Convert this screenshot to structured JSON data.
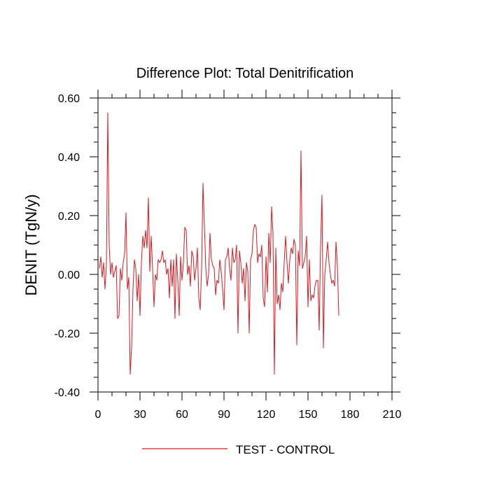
{
  "chart_data": {
    "type": "line",
    "title": "Difference Plot: Total Denitrification",
    "xlabel": "",
    "ylabel": "DENIT  (TgN/y)",
    "xlim": [
      0,
      210
    ],
    "ylim": [
      -0.4,
      0.6
    ],
    "xticks": [
      0,
      30,
      60,
      90,
      120,
      150,
      180,
      210
    ],
    "xtick_labels": [
      "0",
      "30",
      "60",
      "90",
      "120",
      "150",
      "180",
      "210"
    ],
    "yticks": [
      -0.4,
      -0.2,
      0.0,
      0.2,
      0.4,
      0.6
    ],
    "ytick_labels": [
      "-0.40",
      "-0.20",
      "0.00",
      "0.20",
      "0.40",
      "0.60"
    ],
    "grid": false,
    "legend_position": "bottom-center",
    "series": [
      {
        "name": "TEST - CONTROL",
        "color": "#e8141c",
        "x_start": 1,
        "x_step": 1,
        "values": [
          0.02,
          0.06,
          -0.01,
          0.04,
          -0.05,
          0.03,
          0.55,
          0.1,
          0.0,
          0.04,
          -0.01,
          0.01,
          0.03,
          -0.15,
          -0.14,
          0.02,
          -0.02,
          0.04,
          0.07,
          0.21,
          -0.05,
          -0.01,
          -0.34,
          -0.25,
          -0.05,
          0.05,
          0.02,
          -0.09,
          0.0,
          -0.14,
          0.04,
          0.13,
          0.09,
          0.15,
          0.09,
          0.26,
          0.01,
          0.13,
          0.02,
          -0.11,
          0.0,
          -0.02,
          0.05,
          0.04,
          0.05,
          0.08,
          0.04,
          0.05,
          0.0,
          0.02,
          -0.08,
          0.05,
          -0.04,
          0.05,
          -0.15,
          0.07,
          -0.02,
          -0.14,
          0.06,
          -0.02,
          0.04,
          0.16,
          0.15,
          0.0,
          0.03,
          -0.04,
          0.08,
          0.06,
          -0.02,
          0.02,
          0.09,
          -0.08,
          -0.12,
          0.02,
          0.31,
          0.17,
          0.02,
          -0.04,
          0.0,
          0.14,
          0.05,
          0.03,
          0.02,
          -0.07,
          -0.02,
          -0.03,
          0.05,
          0.01,
          -0.05,
          -0.12,
          0.05,
          0.06,
          0.09,
          0.02,
          -0.02,
          0.09,
          0.04,
          0.05,
          0.1,
          -0.2,
          0.08,
          0.04,
          -0.03,
          0.02,
          -0.09,
          0.04,
          0.01,
          -0.2,
          0.05,
          0.07,
          0.15,
          0.17,
          0.16,
          0.04,
          0.07,
          0.06,
          0.1,
          -0.08,
          -0.11,
          0.06,
          -0.06,
          0.14,
          0.04,
          0.23,
          0.14,
          -0.34,
          0.09,
          -0.1,
          -0.07,
          -0.12,
          -0.03,
          -0.06,
          0.04,
          0.13,
          0.04,
          -0.03,
          0.05,
          0.09,
          0.07,
          0.12,
          0.1,
          -0.24,
          0.08,
          0.03,
          0.42,
          0.02,
          0.04,
          0.06,
          0.13,
          -0.11,
          0.05,
          -0.09,
          -0.07,
          -0.08,
          -0.04,
          -0.02,
          -0.02,
          -0.19,
          0.1,
          0.27,
          -0.25,
          0.0,
          0.05,
          0.11,
          0.04,
          0.0,
          -0.03,
          -0.02,
          -0.04,
          0.11,
          0.03,
          -0.14
        ]
      }
    ]
  }
}
